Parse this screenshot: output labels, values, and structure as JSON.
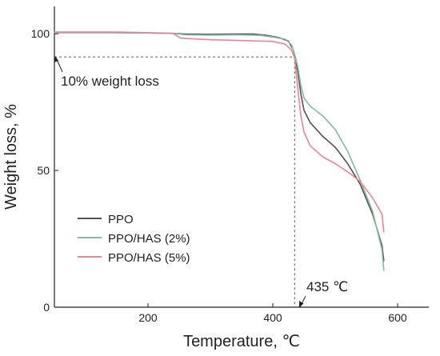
{
  "chart_data": {
    "type": "line",
    "title": "",
    "xlabel": "Temperature, ℃",
    "ylabel": "Weight loss, %",
    "xlim": [
      50,
      650
    ],
    "ylim": [
      0,
      110
    ],
    "x_ticks": [
      {
        "value": 200,
        "label": "200"
      },
      {
        "value": 400,
        "label": "400"
      },
      {
        "value": 600,
        "label": "600"
      }
    ],
    "y_ticks": [
      {
        "value": 0,
        "label": "0"
      },
      {
        "value": 50,
        "label": "50"
      },
      {
        "value": 100,
        "label": "100"
      }
    ],
    "grid": false,
    "legend_position": "lower-left",
    "series": [
      {
        "name": "PPO",
        "color": "#5a4d55",
        "points": [
          [
            50,
            100.4
          ],
          [
            100,
            100.4
          ],
          [
            150,
            100.4
          ],
          [
            200,
            100.3
          ],
          [
            240,
            100.1
          ],
          [
            260,
            99.9
          ],
          [
            300,
            99.8
          ],
          [
            340,
            99.9
          ],
          [
            370,
            99.9
          ],
          [
            390,
            99.4
          ],
          [
            410,
            98.6
          ],
          [
            425,
            97.3
          ],
          [
            432,
            94.5
          ],
          [
            436,
            91.5
          ],
          [
            440,
            86
          ],
          [
            445,
            78
          ],
          [
            450,
            72
          ],
          [
            460,
            67.5
          ],
          [
            480,
            62.5
          ],
          [
            500,
            58.5
          ],
          [
            520,
            52.5
          ],
          [
            540,
            45
          ],
          [
            560,
            34
          ],
          [
            575,
            22.5
          ],
          [
            578,
            17
          ]
        ]
      },
      {
        "name": "PPO/HAS (2%)",
        "color": "#7fbca2",
        "points": [
          [
            50,
            100.4
          ],
          [
            100,
            100.4
          ],
          [
            150,
            100.4
          ],
          [
            200,
            100.3
          ],
          [
            240,
            100.1
          ],
          [
            260,
            99.6
          ],
          [
            300,
            99.5
          ],
          [
            340,
            99.6
          ],
          [
            380,
            99.4
          ],
          [
            400,
            98.8
          ],
          [
            420,
            98
          ],
          [
            430,
            96
          ],
          [
            435,
            92.5
          ],
          [
            440,
            88
          ],
          [
            445,
            81
          ],
          [
            450,
            76.5
          ],
          [
            460,
            73.5
          ],
          [
            480,
            70
          ],
          [
            500,
            65
          ],
          [
            520,
            57
          ],
          [
            540,
            46.5
          ],
          [
            560,
            35
          ],
          [
            575,
            21
          ],
          [
            578,
            13.5
          ]
        ]
      },
      {
        "name": "PPO/HAS (5%)",
        "color": "#ec8592",
        "points": [
          [
            50,
            100.6
          ],
          [
            100,
            100.6
          ],
          [
            150,
            100.6
          ],
          [
            200,
            100.4
          ],
          [
            240,
            100.2
          ],
          [
            252,
            98.4
          ],
          [
            300,
            97.8
          ],
          [
            350,
            97.5
          ],
          [
            400,
            97.2
          ],
          [
            420,
            96.2
          ],
          [
            430,
            94
          ],
          [
            435,
            91
          ],
          [
            440,
            80
          ],
          [
            445,
            70
          ],
          [
            450,
            64
          ],
          [
            460,
            59
          ],
          [
            480,
            55
          ],
          [
            500,
            52.5
          ],
          [
            520,
            49.5
          ],
          [
            540,
            46
          ],
          [
            560,
            40
          ],
          [
            575,
            34
          ],
          [
            578,
            27.5
          ]
        ]
      }
    ],
    "annotations": [
      {
        "text": "10% weight loss",
        "x": 50,
        "y": 91.5
      },
      {
        "text": "435 ℃",
        "x": 435,
        "y": 0
      }
    ],
    "reference_point": {
      "x": 435,
      "y": 91.5
    }
  }
}
